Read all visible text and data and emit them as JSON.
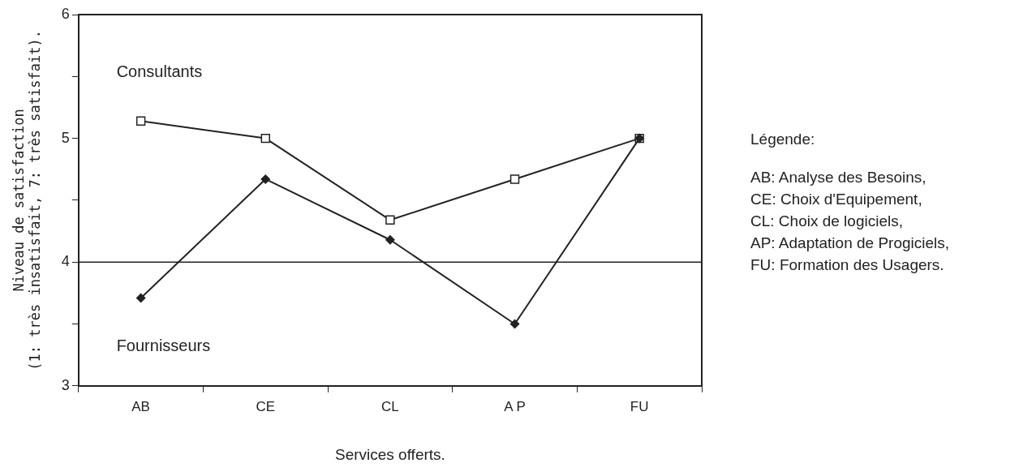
{
  "chart_data": {
    "type": "line",
    "xlabel": "Services offerts.",
    "ylabel": "Niveau de satisfaction\n(1: très insatisfait, 7: très satisfait).",
    "categories": [
      "AB",
      "CE",
      "CL",
      "A P",
      "FU"
    ],
    "series": [
      {
        "name": "Consultants",
        "color": "#222222",
        "marker": "square",
        "values": [
          5.14,
          5.0,
          4.34,
          4.67,
          5.0
        ]
      },
      {
        "name": "Fournisseurs",
        "color": "#222222",
        "marker": "diamond",
        "values": [
          3.71,
          4.67,
          4.18,
          3.5,
          5.0
        ]
      }
    ],
    "ylim": [
      3,
      6
    ],
    "yticks": [
      3,
      {
        "value": 3.5,
        "label": null
      },
      4,
      {
        "value": 4.5,
        "label": null
      },
      5,
      {
        "value": 5.5,
        "label": null
      },
      6
    ],
    "ref_lines": [
      {
        "axis": "y",
        "value": 4,
        "color": "#222222"
      }
    ],
    "grid": false,
    "legend": false,
    "line_style": "solid",
    "annotations": [
      "Légende:",
      "AB: Analyse des Besoins,",
      "CE: Choix d'Equipement,",
      "CL: Choix de logiciels,",
      "AP: Adaptation de Progiciels,",
      "FU: Formation des Usagers."
    ]
  }
}
